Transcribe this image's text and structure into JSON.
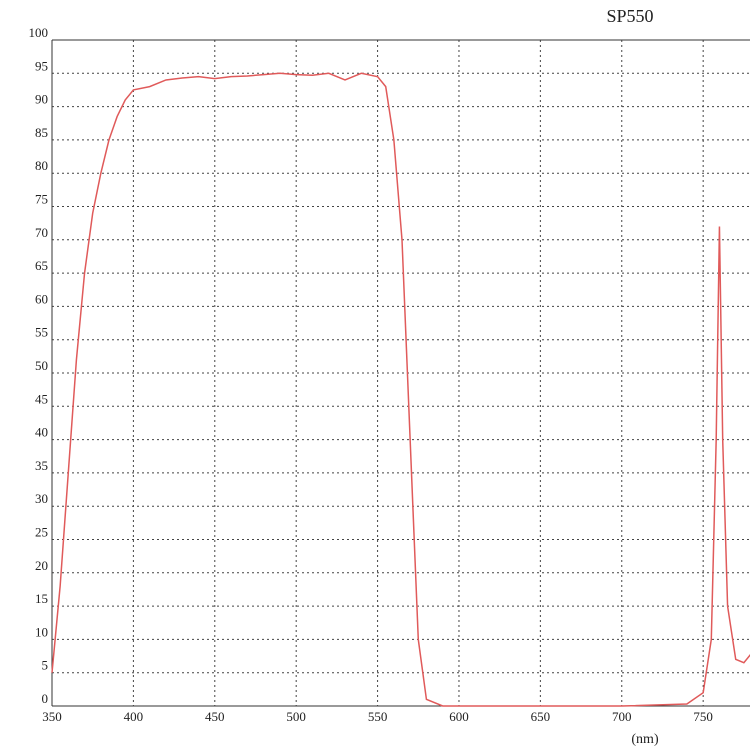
{
  "chart_data": {
    "type": "line",
    "title": "SP550",
    "x_label": "(nm)",
    "x": [
      350,
      355,
      360,
      365,
      370,
      375,
      380,
      385,
      390,
      395,
      400,
      410,
      420,
      430,
      440,
      450,
      460,
      470,
      480,
      490,
      500,
      510,
      520,
      530,
      540,
      550,
      555,
      560,
      565,
      570,
      575,
      580,
      590,
      600,
      650,
      700,
      740,
      750,
      755,
      758,
      760,
      762,
      765,
      770,
      775,
      780
    ],
    "values": [
      5,
      18,
      35,
      52,
      65,
      74,
      80,
      85,
      88.5,
      91,
      92.5,
      93,
      94,
      94.3,
      94.5,
      94.2,
      94.5,
      94.6,
      94.8,
      95,
      94.8,
      94.7,
      95,
      94,
      95,
      94.5,
      93,
      85,
      70,
      40,
      10,
      1,
      0,
      0,
      0,
      0,
      0.3,
      2,
      10,
      40,
      72,
      40,
      15,
      7,
      6.5,
      8
    ],
    "color": "#e05a5a",
    "xlim": [
      350,
      780
    ],
    "xticks": [
      350,
      400,
      450,
      500,
      550,
      600,
      650,
      700,
      750
    ],
    "ylim": [
      0,
      100
    ],
    "yticks": [
      0,
      5,
      10,
      15,
      20,
      25,
      30,
      35,
      40,
      45,
      50,
      55,
      60,
      65,
      70,
      75,
      80,
      85,
      90,
      95,
      100
    ],
    "grid": true
  }
}
